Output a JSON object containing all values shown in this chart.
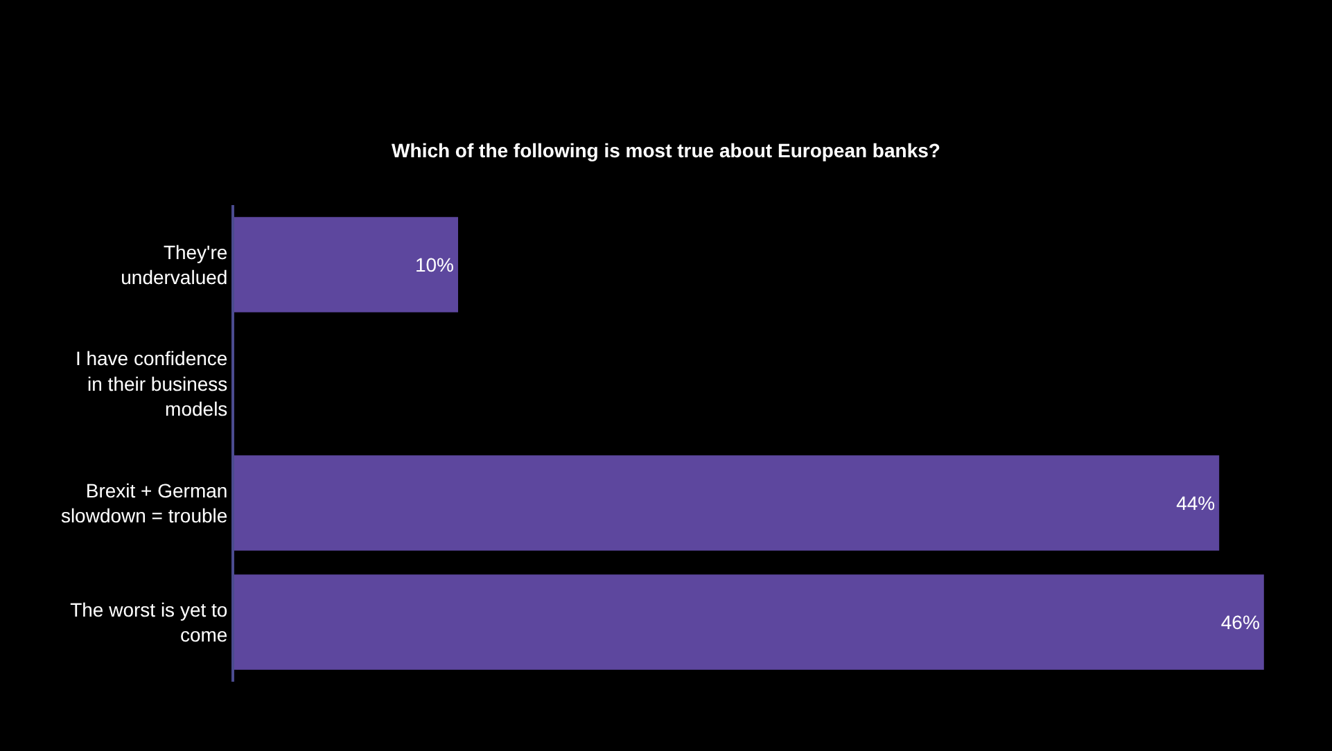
{
  "chart_data": {
    "type": "bar",
    "orientation": "horizontal",
    "title": "Which of the following is most true about European banks?",
    "categories": [
      "They're\nundervalued",
      "I have confidence\nin their business\nmodels",
      "Brexit + German\nslowdown = trouble",
      "The worst is yet to\ncome"
    ],
    "values": [
      10,
      0,
      44,
      46
    ],
    "value_labels": [
      "10%",
      null,
      "44%",
      "46%"
    ],
    "color": "#5d479e"
  }
}
